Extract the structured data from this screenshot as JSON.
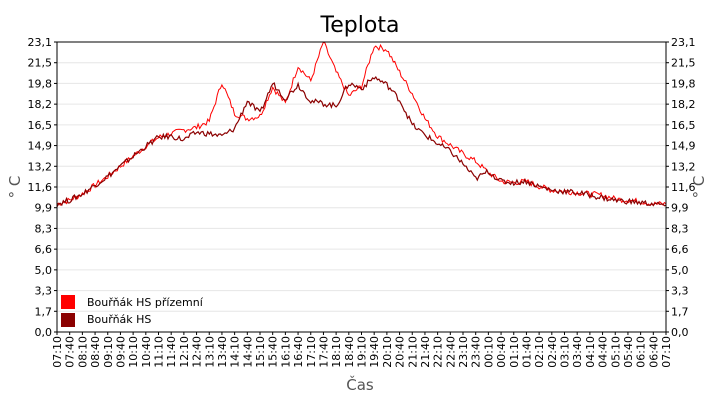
{
  "chart_data": {
    "type": "line",
    "title": "Teplota",
    "xlabel": "Čas",
    "ylabel_left": "° C",
    "ylabel_right": "° C",
    "y_ticks": [
      "0,0",
      "1,7",
      "3,3",
      "5,0",
      "6,6",
      "8,3",
      "9,9",
      "11,6",
      "13,2",
      "14,9",
      "16,5",
      "18,2",
      "19,8",
      "21,5",
      "23,1"
    ],
    "ylim": [
      0,
      23.1
    ],
    "x_ticks": [
      "07:10",
      "07:40",
      "08:10",
      "08:40",
      "09:10",
      "09:40",
      "10:10",
      "10:40",
      "11:10",
      "11:40",
      "12:10",
      "12:40",
      "13:10",
      "13:40",
      "14:10",
      "14:40",
      "15:10",
      "15:40",
      "16:10",
      "16:40",
      "17:10",
      "17:40",
      "18:10",
      "18:40",
      "19:10",
      "19:40",
      "20:10",
      "20:40",
      "21:10",
      "21:40",
      "22:10",
      "22:40",
      "23:10",
      "23:40",
      "00:10",
      "00:40",
      "01:10",
      "01:40",
      "02:10",
      "02:40",
      "03:10",
      "03:40",
      "04:10",
      "04:40",
      "05:10",
      "05:40",
      "06:10",
      "06:40",
      "07:10"
    ],
    "grid": true,
    "legend_position": "bottom-left",
    "series": [
      {
        "name": "Bouřňák HS přízemní",
        "color": "#ff0000",
        "values": [
          10.2,
          10.5,
          11.0,
          11.7,
          12.4,
          13.2,
          14.0,
          14.8,
          15.5,
          15.8,
          16.1,
          16.3,
          16.8,
          19.9,
          17.4,
          17.0,
          17.2,
          19.5,
          18.2,
          21.2,
          20.0,
          23.1,
          20.7,
          18.8,
          19.6,
          22.8,
          22.5,
          20.7,
          19.0,
          17.0,
          15.6,
          14.9,
          14.2,
          13.6,
          12.7,
          12.0,
          11.9,
          12.0,
          11.6,
          11.3,
          11.2,
          11.1,
          11.0,
          10.9,
          10.6,
          10.5,
          10.4,
          10.2,
          10.2
        ]
      },
      {
        "name": "Bouřňák HS",
        "color": "#8b0000",
        "values": [
          10.2,
          10.5,
          11.0,
          11.7,
          12.4,
          13.2,
          14.0,
          14.8,
          15.5,
          15.6,
          15.3,
          15.9,
          15.8,
          15.6,
          16.2,
          18.4,
          17.4,
          19.8,
          18.6,
          19.7,
          18.4,
          18.2,
          18.0,
          19.8,
          19.4,
          20.3,
          19.7,
          18.5,
          16.5,
          15.7,
          15.0,
          14.4,
          13.4,
          12.2,
          12.8,
          12.0,
          11.9,
          12.0,
          11.6,
          11.3,
          11.2,
          11.1,
          10.9,
          10.7,
          10.5,
          10.4,
          10.3,
          10.2,
          10.1
        ]
      }
    ]
  }
}
